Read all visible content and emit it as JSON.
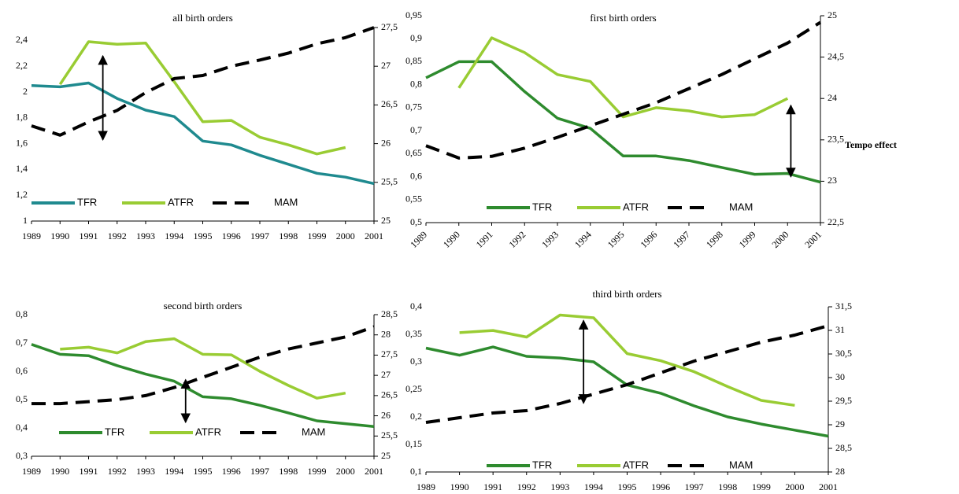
{
  "chart_data": [
    {
      "type": "line",
      "title": "all birth orders",
      "categories": [
        "1989",
        "1990",
        "1991",
        "1992",
        "1993",
        "1994",
        "1995",
        "1996",
        "1997",
        "1998",
        "1999",
        "2000",
        "2001"
      ],
      "series": [
        {
          "name": "TFR",
          "color": "#1f8a8f",
          "values": [
            2.05,
            2.04,
            2.07,
            1.95,
            1.86,
            1.81,
            1.62,
            1.59,
            1.51,
            1.44,
            1.37,
            1.34,
            1.29
          ]
        },
        {
          "name": "ATFR",
          "color": "#99cc33",
          "values": [
            null,
            2.06,
            2.39,
            2.37,
            2.38,
            2.08,
            1.77,
            1.78,
            1.65,
            1.59,
            1.52,
            1.57,
            null
          ]
        },
        {
          "name": "MAM",
          "color": "#000000",
          "axis": "y2",
          "dashed": true,
          "values": [
            26.23,
            26.11,
            26.28,
            26.43,
            26.66,
            26.84,
            26.88,
            27.0,
            27.08,
            27.17,
            27.29,
            27.37,
            27.5
          ]
        }
      ],
      "ylim": [
        1,
        2.5
      ],
      "yticks": [
        1,
        {
          "value": 1.2,
          "label": "1,2"
        },
        {
          "value": 1.4,
          "label": "1,4"
        },
        {
          "value": 1.6,
          "label": "1,6"
        },
        {
          "value": 1.8,
          "label": "1,8"
        },
        2,
        {
          "value": 2.2,
          "label": "2,2"
        },
        {
          "value": 2.4,
          "label": "2,4"
        }
      ],
      "y2lim": [
        25,
        27.5
      ],
      "y2ticks": [
        25,
        {
          "value": 25.5,
          "label": "25,5"
        },
        26,
        {
          "value": 26.5,
          "label": "26,5"
        },
        27,
        {
          "value": 27.5,
          "label": "27,5"
        }
      ]
    },
    {
      "type": "line",
      "title": "first birth orders",
      "categories": [
        "1989",
        "1990",
        "1991",
        "1992",
        "1993",
        "1994",
        "1995",
        "1996",
        "1997",
        "1998",
        "1999",
        "2000",
        "2001"
      ],
      "series": [
        {
          "name": "TFR",
          "color": "#2e8b2e",
          "values": [
            0.815,
            0.85,
            0.85,
            0.785,
            0.727,
            0.705,
            0.645,
            0.645,
            0.635,
            0.62,
            0.605,
            0.607,
            0.588
          ]
        },
        {
          "name": "ATFR",
          "color": "#99cc33",
          "values": [
            null,
            0.793,
            0.902,
            0.87,
            0.822,
            0.807,
            0.73,
            0.75,
            0.743,
            0.73,
            0.735,
            0.77,
            null
          ]
        },
        {
          "name": "MAM",
          "color": "#000000",
          "axis": "y2",
          "dashed": true,
          "values": [
            23.43,
            23.28,
            23.3,
            23.4,
            23.53,
            23.67,
            23.81,
            23.95,
            24.12,
            24.29,
            24.48,
            24.67,
            24.92
          ]
        }
      ],
      "ylim": [
        0.5,
        0.95
      ],
      "yticks": [
        {
          "value": 0.5,
          "label": "0,5"
        },
        {
          "value": 0.55,
          "label": "0,55"
        },
        {
          "value": 0.6,
          "label": "0,6"
        },
        {
          "value": 0.65,
          "label": "0,65"
        },
        {
          "value": 0.7,
          "label": "0,7"
        },
        {
          "value": 0.75,
          "label": "0,75"
        },
        {
          "value": 0.8,
          "label": "0,8"
        },
        {
          "value": 0.85,
          "label": "0,85"
        },
        {
          "value": 0.9,
          "label": "0,9"
        },
        {
          "value": 0.95,
          "label": "0,95"
        }
      ],
      "y2lim": [
        22.5,
        25
      ],
      "y2ticks": [
        {
          "value": 22.5,
          "label": "22,5"
        },
        23,
        {
          "value": 23.5,
          "label": "23,5"
        },
        24,
        {
          "value": 24.5,
          "label": "24,5"
        },
        25
      ],
      "annotation": "Tempo effect"
    },
    {
      "type": "line",
      "title": "second birth orders",
      "categories": [
        "1989",
        "1990",
        "1991",
        "1992",
        "1993",
        "1994",
        "1995",
        "1996",
        "1997",
        "1998",
        "1999",
        "2000",
        "2001"
      ],
      "series": [
        {
          "name": "TFR",
          "color": "#2e8b2e",
          "values": [
            0.695,
            0.66,
            0.655,
            0.62,
            0.59,
            0.565,
            0.51,
            0.503,
            0.48,
            0.453,
            0.425,
            0.415,
            0.405
          ]
        },
        {
          "name": "ATFR",
          "color": "#99cc33",
          "values": [
            null,
            0.678,
            0.685,
            0.665,
            0.705,
            0.715,
            0.66,
            0.658,
            0.6,
            0.55,
            0.505,
            0.523,
            null
          ]
        },
        {
          "name": "MAM",
          "color": "#000000",
          "axis": "y2",
          "dashed": true,
          "values": [
            26.3,
            26.3,
            26.35,
            26.4,
            26.5,
            26.7,
            26.95,
            27.2,
            27.45,
            27.65,
            27.8,
            27.95,
            28.2
          ]
        }
      ],
      "ylim": [
        0.3,
        0.8
      ],
      "yticks": [
        {
          "value": 0.3,
          "label": "0,3"
        },
        {
          "value": 0.4,
          "label": "0,4"
        },
        {
          "value": 0.5,
          "label": "0,5"
        },
        {
          "value": 0.6,
          "label": "0,6"
        },
        {
          "value": 0.7,
          "label": "0,7"
        },
        {
          "value": 0.8,
          "label": "0,8"
        }
      ],
      "y2lim": [
        25,
        28.5
      ],
      "y2ticks": [
        25,
        {
          "value": 25.5,
          "label": "25,5"
        },
        26,
        {
          "value": 26.5,
          "label": "26,5"
        },
        27,
        {
          "value": 27.5,
          "label": "27,5"
        },
        28,
        {
          "value": 28.5,
          "label": "28,5"
        }
      ]
    },
    {
      "type": "line",
      "title": "third birth orders",
      "categories": [
        "1989",
        "1990",
        "1991",
        "1992",
        "1993",
        "1994",
        "1995",
        "1996",
        "1997",
        "1998",
        "1999",
        "2000",
        "2001"
      ],
      "series": [
        {
          "name": "TFR",
          "color": "#2e8b2e",
          "values": [
            0.325,
            0.312,
            0.327,
            0.31,
            0.307,
            0.3,
            0.258,
            0.243,
            0.22,
            0.2,
            0.187,
            0.176,
            0.165
          ]
        },
        {
          "name": "ATFR",
          "color": "#99cc33",
          "values": [
            null,
            0.353,
            0.357,
            0.345,
            0.385,
            0.38,
            0.315,
            0.302,
            0.282,
            0.255,
            0.23,
            0.221,
            null
          ]
        },
        {
          "name": "MAM",
          "color": "#000000",
          "axis": "y2",
          "dashed": true,
          "values": [
            29.05,
            29.15,
            29.25,
            29.3,
            29.45,
            29.65,
            29.85,
            30.1,
            30.35,
            30.55,
            30.75,
            30.9,
            31.1
          ]
        }
      ],
      "ylim": [
        0.1,
        0.4
      ],
      "yticks": [
        {
          "value": 0.1,
          "label": "0,1"
        },
        {
          "value": 0.15,
          "label": "0,15"
        },
        {
          "value": 0.2,
          "label": "0,2"
        },
        {
          "value": 0.25,
          "label": "0,25"
        },
        {
          "value": 0.3,
          "label": "0,3"
        },
        {
          "value": 0.35,
          "label": "0,35"
        },
        {
          "value": 0.4,
          "label": "0,4"
        }
      ],
      "y2lim": [
        28,
        31.5
      ],
      "y2ticks": [
        28,
        {
          "value": 28.5,
          "label": "28,5"
        },
        29,
        {
          "value": 29.5,
          "label": "29,5"
        },
        30,
        {
          "value": 30.5,
          "label": "30,5"
        },
        31,
        {
          "value": 31.5,
          "label": "31,5"
        }
      ]
    }
  ]
}
